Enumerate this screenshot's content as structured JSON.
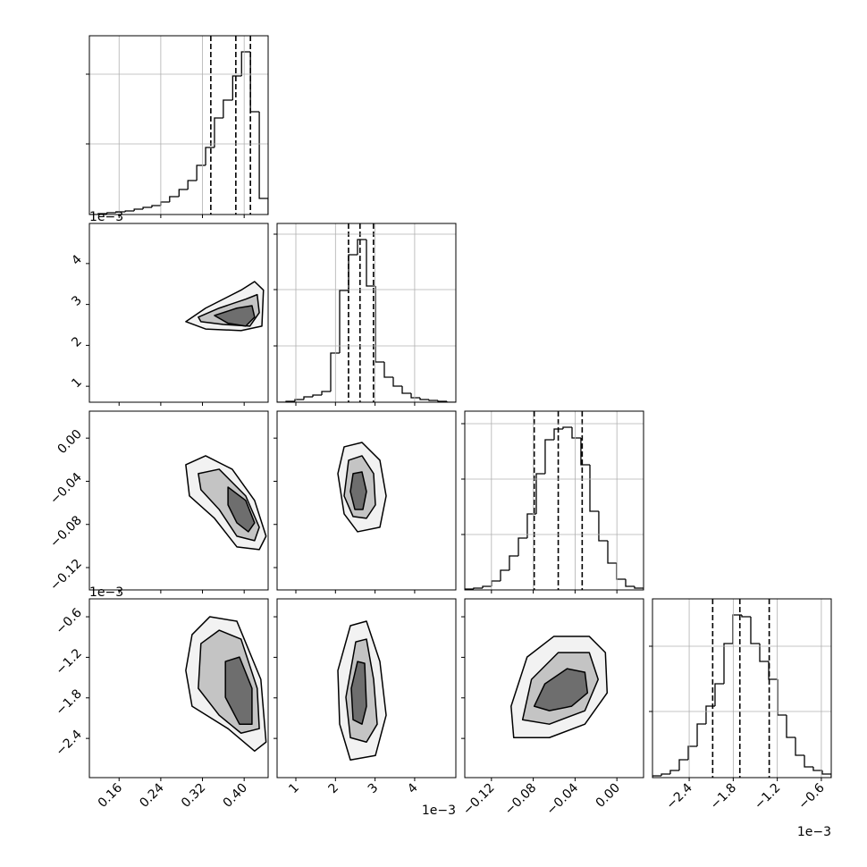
{
  "chart_data": [
    {
      "type": "histogram",
      "color": "#000000",
      "grid": true,
      "bins": [
        0.103,
        0.12,
        0.137,
        0.154,
        0.172,
        0.189,
        0.206,
        0.223,
        0.24,
        0.257,
        0.275,
        0.292,
        0.309,
        0.326,
        0.343,
        0.36,
        0.378,
        0.395,
        0.412,
        0.429,
        0.446
      ],
      "counts": [
        0,
        1,
        2,
        3,
        4,
        6,
        8,
        10,
        14,
        20,
        28,
        38,
        55,
        75,
        108,
        128,
        155,
        182,
        115,
        18
      ],
      "quantiles": [
        0.336,
        0.384,
        0.412
      ],
      "xlim": [
        0.103,
        0.446
      ],
      "ylim": [
        0,
        200
      ],
      "xticks": [
        0.16,
        0.24,
        0.32,
        {
          "value": 0.4,
          "label": "0.40"
        }
      ],
      "yticks": [
        79,
        157
      ]
    },
    {
      "type": "contour",
      "colors": [
        "#f2f2f2",
        "#c4c4c4",
        "#6e6e6e"
      ],
      "xlim": [
        0.103,
        0.446
      ],
      "ylim": [
        0.61,
        4.98
      ],
      "xticks": [
        0.16,
        0.24,
        0.32,
        {
          "value": 0.4,
          "label": "0.40"
        }
      ],
      "yticks": [
        1,
        2,
        3,
        4
      ],
      "y_offset_label": "1e−3",
      "contours": [
        {
          "x": [
            0.288,
            0.326,
            0.394,
            0.42,
            0.437,
            0.434,
            0.394,
            0.326
          ],
          "y": [
            2.58,
            2.91,
            3.35,
            3.56,
            3.35,
            2.47,
            2.36,
            2.4
          ]
        },
        {
          "x": [
            0.312,
            0.352,
            0.403,
            0.425,
            0.429,
            0.411,
            0.36,
            0.317
          ],
          "y": [
            2.69,
            2.91,
            3.13,
            3.24,
            2.8,
            2.47,
            2.51,
            2.58
          ]
        },
        {
          "x": [
            0.343,
            0.386,
            0.415,
            0.42,
            0.403,
            0.369
          ],
          "y": [
            2.73,
            2.91,
            2.97,
            2.69,
            2.47,
            2.54
          ]
        }
      ]
    },
    {
      "type": "histogram",
      "color": "#000000",
      "grid": true,
      "bins": [
        0.526,
        0.752,
        0.977,
        1.203,
        1.429,
        1.655,
        1.88,
        2.106,
        2.332,
        2.557,
        2.783,
        3.009,
        3.234,
        3.46,
        3.686,
        3.912,
        4.137,
        4.363,
        4.589,
        4.814,
        5.04
      ],
      "counts": [
        0,
        1,
        3,
        6,
        8,
        12,
        55,
        125,
        165,
        182,
        130,
        45,
        28,
        18,
        10,
        5,
        3,
        2,
        1,
        0
      ],
      "quantiles": [
        2.33,
        2.62,
        2.96
      ],
      "xlim": [
        0.526,
        5.04
      ],
      "ylim": [
        0,
        200
      ],
      "xticks": [
        1,
        2,
        3,
        4
      ],
      "yticks": [
        63,
        126,
        188
      ]
    },
    {
      "type": "contour",
      "colors": [
        "#f2f2f2",
        "#c4c4c4",
        "#6e6e6e"
      ],
      "xlim": [
        0.103,
        0.446
      ],
      "ylim": [
        -0.1407,
        0.025
      ],
      "xticks": [
        0.16,
        0.24,
        0.32,
        {
          "value": 0.4,
          "label": "0.40"
        }
      ],
      "yticks": [
        {
          "value": -0.12,
          "label": "−0.12"
        },
        {
          "value": -0.08,
          "label": "−0.08"
        },
        {
          "value": -0.04,
          "label": "−0.04"
        },
        {
          "value": 0,
          "label": "0.00"
        }
      ],
      "contours": [
        {
          "x": [
            0.288,
            0.326,
            0.377,
            0.42,
            0.442,
            0.429,
            0.386,
            0.343,
            0.295
          ],
          "y": [
            -0.0247,
            -0.0164,
            -0.0288,
            -0.0578,
            -0.0909,
            -0.1033,
            -0.1008,
            -0.0743,
            -0.0536
          ]
        },
        {
          "x": [
            0.312,
            0.352,
            0.403,
            0.429,
            0.42,
            0.386,
            0.352,
            0.317
          ],
          "y": [
            -0.0329,
            -0.0288,
            -0.0536,
            -0.0826,
            -0.095,
            -0.0909,
            -0.0661,
            -0.0478
          ]
        },
        {
          "x": [
            0.369,
            0.403,
            0.42,
            0.408,
            0.386,
            0.369
          ],
          "y": [
            -0.0454,
            -0.0578,
            -0.0785,
            -0.0868,
            -0.0785,
            -0.0619
          ]
        }
      ]
    },
    {
      "type": "contour",
      "colors": [
        "#f2f2f2",
        "#c4c4c4",
        "#6e6e6e"
      ],
      "xlim": [
        0.526,
        5.04
      ],
      "ylim": [
        -0.1407,
        0.025
      ],
      "xticks": [
        1,
        2,
        3,
        4
      ],
      "yticks": [
        {
          "value": -0.12,
          "label": "−0.12"
        },
        {
          "value": -0.08,
          "label": "−0.08"
        },
        {
          "value": -0.04,
          "label": "−0.04"
        },
        {
          "value": 0,
          "label": "0.00"
        }
      ],
      "contours": [
        {
          "x": [
            2.219,
            2.67,
            3.122,
            3.28,
            3.122,
            2.558,
            2.219,
            2.061
          ],
          "y": [
            -0.0081,
            -0.004,
            -0.0205,
            -0.0536,
            -0.0826,
            -0.0868,
            -0.0702,
            -0.0329
          ]
        },
        {
          "x": [
            2.332,
            2.67,
            2.964,
            3.009,
            2.783,
            2.445,
            2.219
          ],
          "y": [
            -0.0205,
            -0.0164,
            -0.0329,
            -0.0619,
            -0.0743,
            -0.0727,
            -0.0536
          ]
        },
        {
          "x": [
            2.445,
            2.67,
            2.783,
            2.693,
            2.49,
            2.377
          ],
          "y": [
            -0.0329,
            -0.0313,
            -0.0495,
            -0.0661,
            -0.0661,
            -0.0495
          ]
        }
      ]
    },
    {
      "type": "histogram",
      "color": "#000000",
      "grid": true,
      "bins": [
        -0.1455,
        -0.137,
        -0.1284,
        -0.1199,
        -0.1113,
        -0.1028,
        -0.0942,
        -0.0857,
        -0.0771,
        -0.0686,
        -0.06,
        -0.0515,
        -0.0429,
        -0.0344,
        -0.0258,
        -0.0173,
        -0.0087,
        -0.0002,
        0.0084,
        0.0169,
        0.0255
      ],
      "counts": [
        1,
        2,
        4,
        10,
        22,
        38,
        58,
        85,
        130,
        168,
        180,
        182,
        170,
        140,
        88,
        55,
        30,
        12,
        4,
        2
      ],
      "quantiles": [
        -0.0791,
        -0.0561,
        -0.0332
      ],
      "xlim": [
        -0.1455,
        0.0255
      ],
      "ylim": [
        0,
        200
      ],
      "xticks": [
        {
          "value": -0.12,
          "label": "−0.12"
        },
        {
          "value": -0.08,
          "label": "−0.08"
        },
        {
          "value": -0.04,
          "label": "−0.04"
        },
        {
          "value": 0,
          "label": "0.00"
        }
      ],
      "yticks": [
        62,
        124,
        186
      ]
    },
    {
      "type": "contour",
      "colors": [
        "#f2f2f2",
        "#c4c4c4",
        "#6e6e6e"
      ],
      "xlim": [
        0.103,
        0.446
      ],
      "ylim": [
        -2.98,
        -0.335
      ],
      "xticks": [
        0.16,
        0.24,
        0.32,
        {
          "value": 0.4,
          "label": "0.40"
        }
      ],
      "yticks": [
        {
          "value": -2.4,
          "label": "−2.4"
        },
        {
          "value": -1.8,
          "label": "−1.8"
        },
        {
          "value": -1.2,
          "label": "−1.2"
        },
        {
          "value": -0.6,
          "label": "−0.6"
        }
      ],
      "y_offset_label": "1e−3",
      "contours": [
        {
          "x": [
            0.3,
            0.334,
            0.386,
            0.432,
            0.442,
            0.42,
            0.369,
            0.3,
            0.288
          ],
          "y": [
            -0.865,
            -0.6,
            -0.666,
            -1.527,
            -2.454,
            -2.587,
            -2.255,
            -1.924,
            -1.395
          ]
        },
        {
          "x": [
            0.317,
            0.352,
            0.394,
            0.425,
            0.429,
            0.394,
            0.352,
            0.312
          ],
          "y": [
            -0.997,
            -0.799,
            -0.931,
            -1.659,
            -2.255,
            -2.322,
            -2.057,
            -1.659
          ]
        },
        {
          "x": [
            0.364,
            0.391,
            0.415,
            0.415,
            0.391,
            0.364
          ],
          "y": [
            -1.262,
            -1.196,
            -1.659,
            -2.189,
            -2.189,
            -1.792
          ]
        }
      ]
    },
    {
      "type": "contour",
      "colors": [
        "#f2f2f2",
        "#c4c4c4",
        "#6e6e6e"
      ],
      "xlim": [
        0.526,
        5.04
      ],
      "ylim": [
        -2.98,
        -0.335
      ],
      "xticks": [
        1,
        2,
        3,
        4
      ],
      "yticks": [
        {
          "value": -2.4,
          "label": "−2.4"
        },
        {
          "value": -1.8,
          "label": "−1.8"
        },
        {
          "value": -1.2,
          "label": "−1.2"
        },
        {
          "value": -0.6,
          "label": "−0.6"
        }
      ],
      "x_offset_label": "1e−3",
      "contours": [
        {
          "x": [
            2.377,
            2.783,
            3.122,
            3.28,
            3.009,
            2.377,
            2.106,
            2.061
          ],
          "y": [
            -0.732,
            -0.666,
            -1.262,
            -2.057,
            -2.653,
            -2.719,
            -2.189,
            -1.395
          ]
        },
        {
          "x": [
            2.512,
            2.783,
            2.964,
            3.054,
            2.783,
            2.377,
            2.264
          ],
          "y": [
            -0.971,
            -0.931,
            -1.527,
            -2.189,
            -2.454,
            -2.388,
            -1.792
          ]
        },
        {
          "x": [
            2.558,
            2.738,
            2.783,
            2.67,
            2.445,
            2.4
          ],
          "y": [
            -1.262,
            -1.289,
            -1.924,
            -2.189,
            -2.123,
            -1.659
          ]
        }
      ]
    },
    {
      "type": "contour",
      "colors": [
        "#f2f2f2",
        "#c4c4c4",
        "#6e6e6e"
      ],
      "xlim": [
        -0.1455,
        0.0255
      ],
      "ylim": [
        -2.98,
        -0.335
      ],
      "xticks": [
        {
          "value": -0.12,
          "label": "−0.12"
        },
        {
          "value": -0.08,
          "label": "−0.08"
        },
        {
          "value": -0.04,
          "label": "−0.04"
        },
        {
          "value": 0,
          "label": "0.00"
        }
      ],
      "yticks": [
        {
          "value": -2.4,
          "label": "−2.4"
        },
        {
          "value": -1.8,
          "label": "−1.8"
        },
        {
          "value": -1.2,
          "label": "−1.2"
        },
        {
          "value": -0.6,
          "label": "−0.6"
        }
      ],
      "contours": [
        {
          "x": [
            -0.0987,
            -0.1012,
            -0.0859,
            -0.0604,
            -0.0264,
            -0.011,
            -0.0093,
            -0.0306,
            -0.0646
          ],
          "y": [
            -2.388,
            -1.924,
            -1.196,
            -0.891,
            -0.891,
            -1.13,
            -1.726,
            -2.189,
            -2.388
          ]
        },
        {
          "x": [
            -0.0902,
            -0.0817,
            -0.0561,
            -0.0264,
            -0.0179,
            -0.0306,
            -0.0646
          ],
          "y": [
            -2.123,
            -1.527,
            -1.13,
            -1.13,
            -1.527,
            -1.99,
            -2.189
          ]
        },
        {
          "x": [
            -0.0791,
            -0.0689,
            -0.0476,
            -0.0306,
            -0.0281,
            -0.0434,
            -0.0646
          ],
          "y": [
            -1.924,
            -1.593,
            -1.368,
            -1.421,
            -1.726,
            -1.924,
            -1.99
          ]
        }
      ]
    },
    {
      "type": "histogram",
      "color": "#000000",
      "grid": true,
      "bins": [
        -2.9,
        -2.778,
        -2.657,
        -2.535,
        -2.413,
        -2.291,
        -2.17,
        -2.048,
        -1.926,
        -1.804,
        -1.683,
        -1.561,
        -1.439,
        -1.317,
        -1.196,
        -1.074,
        -0.952,
        -0.83,
        -0.709,
        -0.587,
        -0.465
      ],
      "counts": [
        2,
        4,
        8,
        20,
        35,
        60,
        80,
        105,
        150,
        182,
        180,
        150,
        130,
        110,
        70,
        45,
        25,
        12,
        8,
        4
      ],
      "quantiles": [
        -2.08,
        -1.71,
        -1.31
      ],
      "xlim": [
        -2.9,
        -0.465
      ],
      "ylim": [
        0,
        200
      ],
      "xticks": [
        {
          "value": -2.4,
          "label": "−2.4"
        },
        {
          "value": -1.8,
          "label": "−1.8"
        },
        {
          "value": -1.2,
          "label": "−1.2"
        },
        {
          "value": -0.6,
          "label": "−0.6"
        }
      ],
      "yticks": [
        74,
        147
      ],
      "x_offset_label": "1e−3"
    }
  ]
}
